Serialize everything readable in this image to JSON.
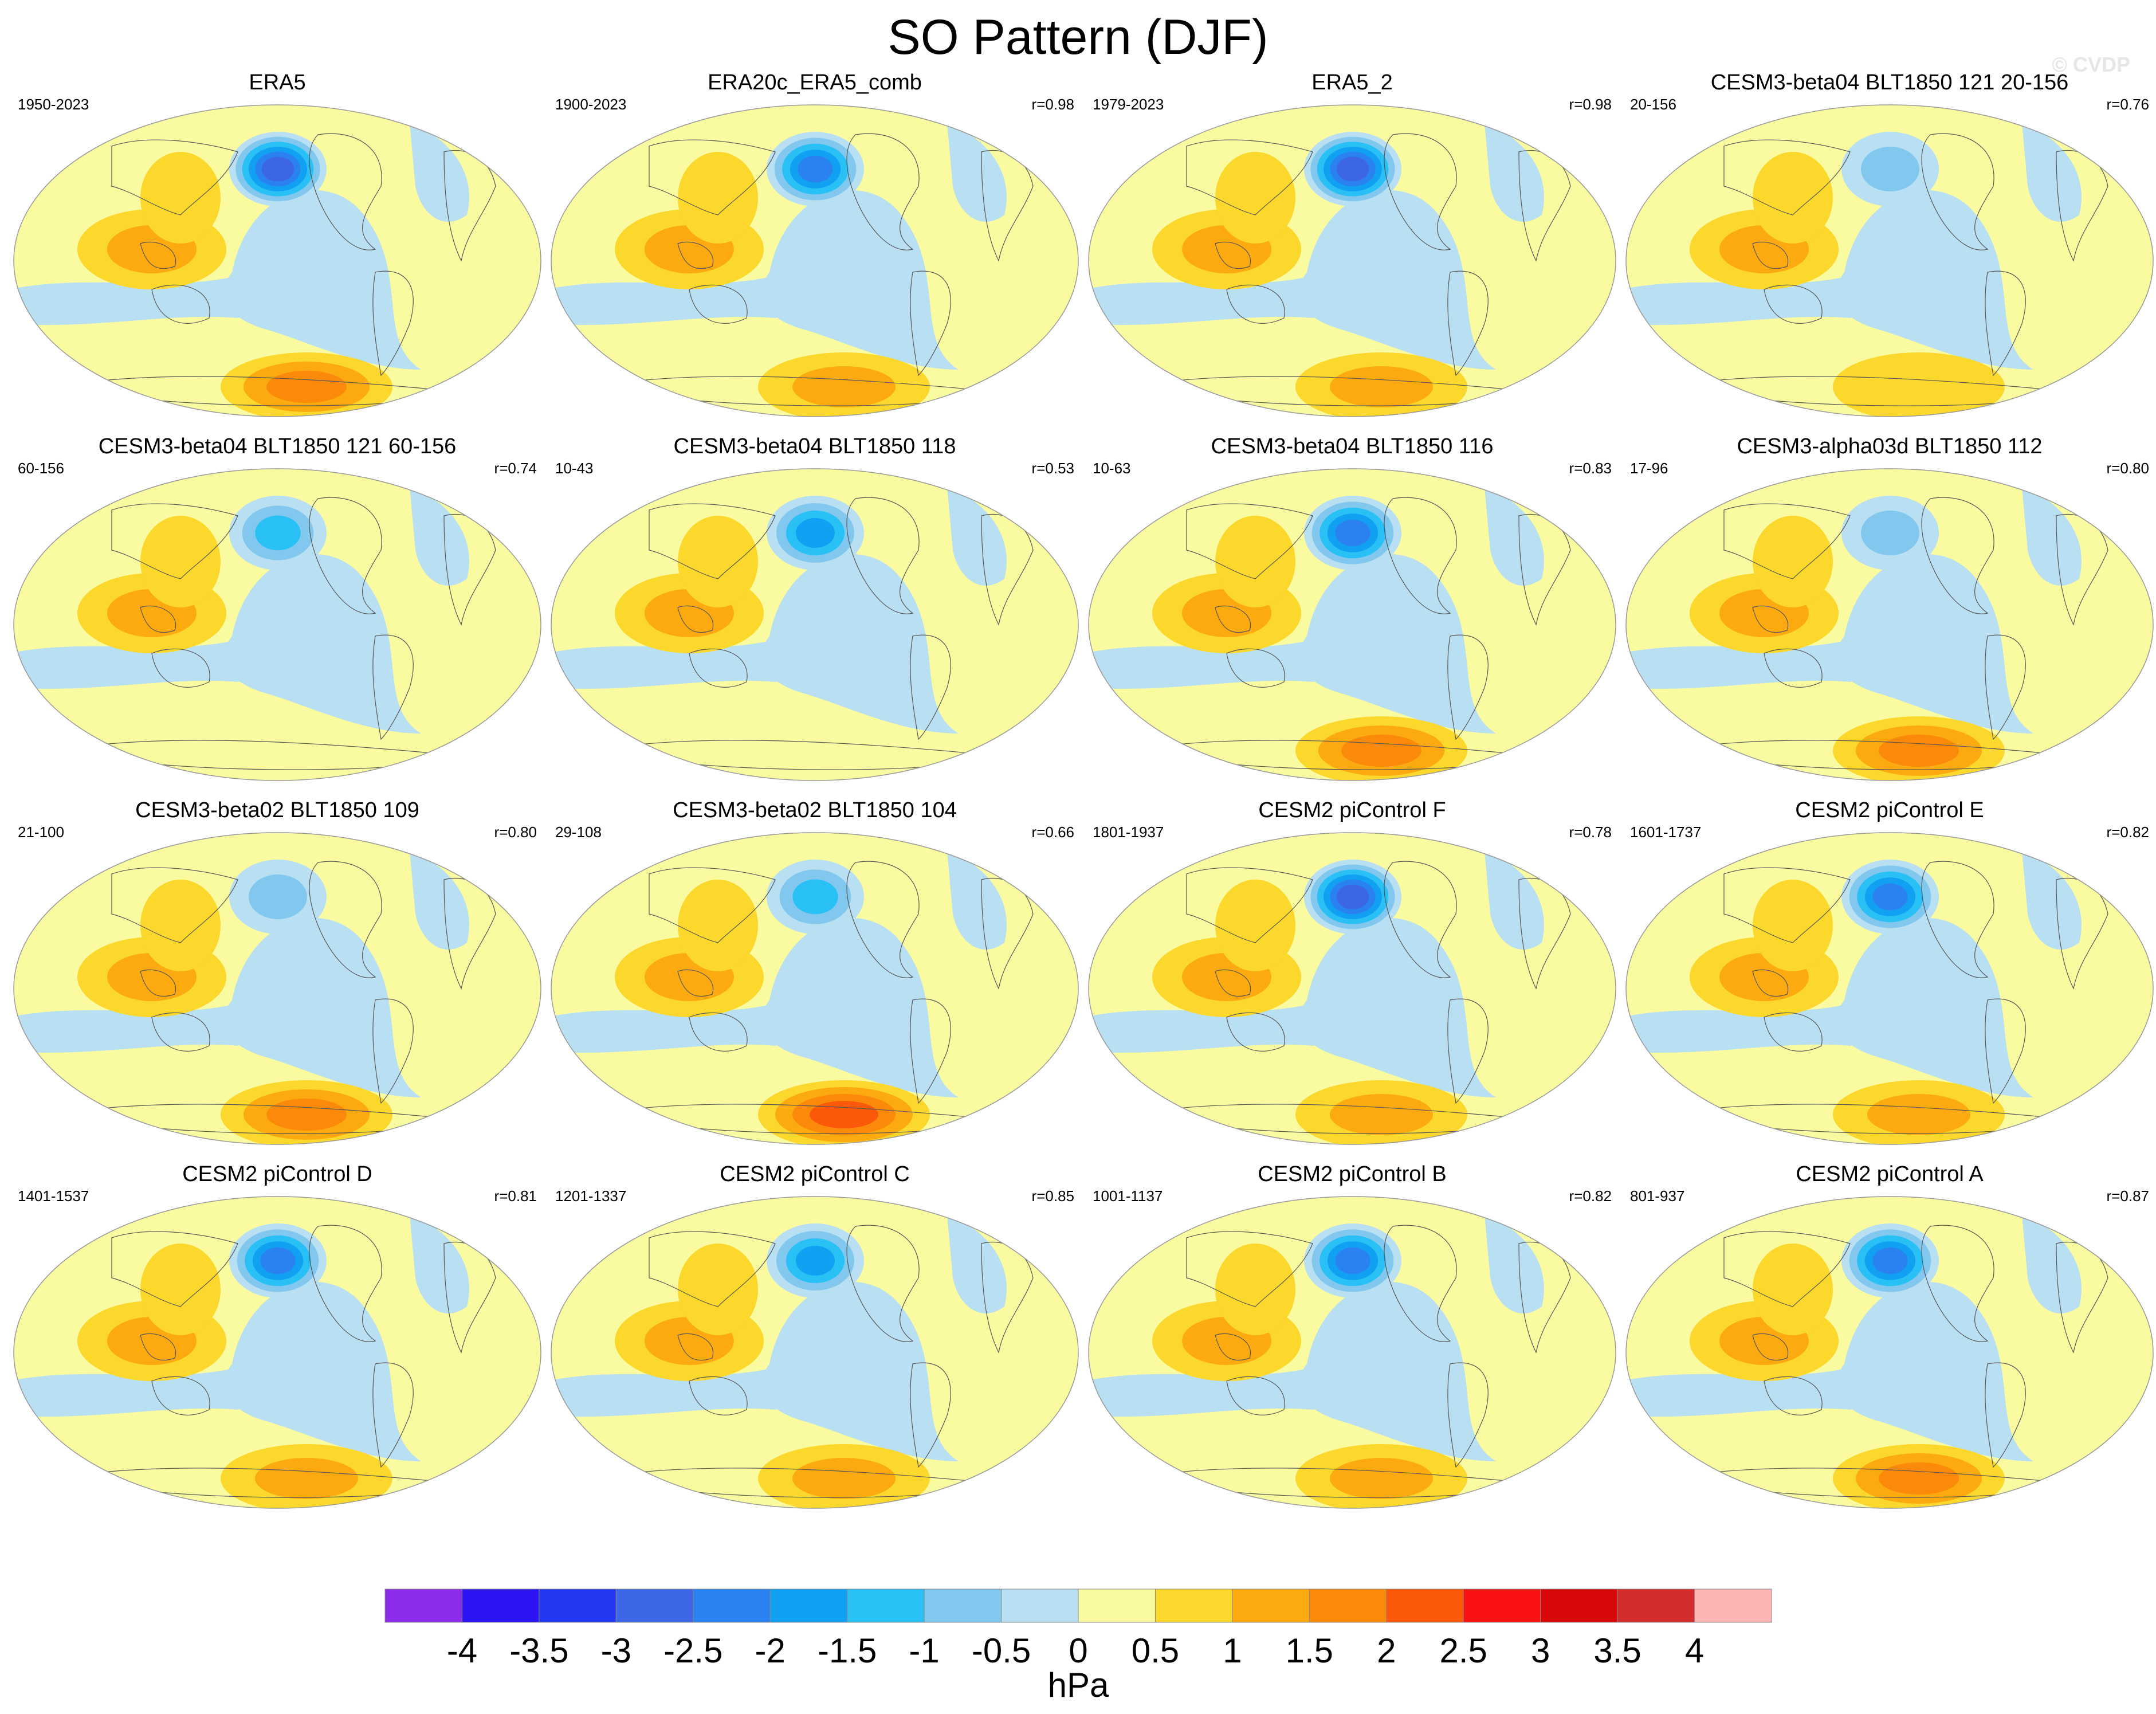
{
  "title": "SO Pattern (DJF)",
  "watermark": "© CVDP",
  "chart_data": {
    "type": "heatmap",
    "title": "SO Pattern (DJF)",
    "projection": "Robinson (Pacific-centered)",
    "units": "hPa",
    "colorbar": {
      "labels": [
        "-4",
        "-3.5",
        "-3",
        "-2.5",
        "-2",
        "-1.5",
        "-1",
        "-0.5",
        "0",
        "0.5",
        "1",
        "1.5",
        "2",
        "2.5",
        "3",
        "3.5",
        "4"
      ],
      "levels": [
        -4,
        -3.5,
        -3,
        -2.5,
        -2,
        -1.5,
        -1,
        -0.5,
        0,
        0.5,
        1,
        1.5,
        2,
        2.5,
        3,
        3.5,
        4
      ],
      "colors": [
        "#8a2ce8",
        "#2a14f5",
        "#2338f0",
        "#3d66e6",
        "#2a82f0",
        "#12a0f2",
        "#28c0f5",
        "#82c8ee",
        "#b8e0f2",
        "#fafaa0",
        "#fcd72c",
        "#fcaa10",
        "#fc8a0a",
        "#fc580a",
        "#fa1212",
        "#d80808",
        "#d22c2c",
        "#fcb4b4"
      ],
      "title": "hPa"
    },
    "panels": [
      {
        "title": "ERA5",
        "years": "1950-2023",
        "r": "",
        "neg_low": -3.0,
        "south_pos": 2.0
      },
      {
        "title": "ERA20c_ERA5_comb",
        "years": "1900-2023",
        "r": "r=0.98",
        "neg_low": -2.5,
        "south_pos": 1.5
      },
      {
        "title": "ERA5_2",
        "years": "1979-2023",
        "r": "r=0.98",
        "neg_low": -3.0,
        "south_pos": 1.5
      },
      {
        "title": "CESM3-beta04 BLT1850 121 20-156",
        "years": "20-156",
        "r": "r=0.76",
        "neg_low": -1.0,
        "south_pos": 1.0
      },
      {
        "title": "CESM3-beta04 BLT1850 121 60-156",
        "years": "60-156",
        "r": "r=0.74",
        "neg_low": -1.5,
        "south_pos": 0.5
      },
      {
        "title": "CESM3-beta04 BLT1850 118",
        "years": "10-43",
        "r": "r=0.53",
        "neg_low": -2.0,
        "south_pos": 0.5
      },
      {
        "title": "CESM3-beta04 BLT1850 116",
        "years": "10-63",
        "r": "r=0.83",
        "neg_low": -2.5,
        "south_pos": 2.0
      },
      {
        "title": "CESM3-alpha03d BLT1850 112",
        "years": "17-96",
        "r": "r=0.80",
        "neg_low": -1.0,
        "south_pos": 2.0
      },
      {
        "title": "CESM3-beta02 BLT1850 109",
        "years": "21-100",
        "r": "r=0.80",
        "neg_low": -1.0,
        "south_pos": 2.0
      },
      {
        "title": "CESM3-beta02 BLT1850 104",
        "years": "29-108",
        "r": "r=0.66",
        "neg_low": -1.5,
        "south_pos": 2.5
      },
      {
        "title": "CESM2 piControl F",
        "years": "1801-1937",
        "r": "r=0.78",
        "neg_low": -3.0,
        "south_pos": 1.5
      },
      {
        "title": "CESM2 piControl E",
        "years": "1601-1737",
        "r": "r=0.82",
        "neg_low": -2.5,
        "south_pos": 1.5
      },
      {
        "title": "CESM2 piControl D",
        "years": "1401-1537",
        "r": "r=0.81",
        "neg_low": -2.5,
        "south_pos": 1.5
      },
      {
        "title": "CESM2 piControl C",
        "years": "1201-1337",
        "r": "r=0.85",
        "neg_low": -2.0,
        "south_pos": 1.5
      },
      {
        "title": "CESM2 piControl B",
        "years": "1001-1137",
        "r": "r=0.82",
        "neg_low": -2.5,
        "south_pos": 1.5
      },
      {
        "title": "CESM2 piControl A",
        "years": "801-937",
        "r": "r=0.87",
        "neg_low": -2.5,
        "south_pos": 2.0
      }
    ]
  }
}
